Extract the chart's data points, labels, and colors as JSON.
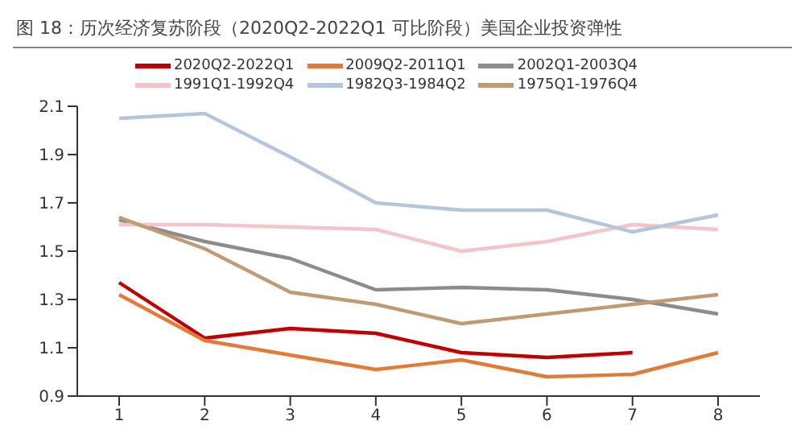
{
  "chart_data": {
    "type": "line",
    "title": "图 18：历次经济复苏阶段（2020Q2-2022Q1 可比阶段）美国企业投资弹性",
    "categories": [
      "1",
      "2",
      "3",
      "4",
      "5",
      "6",
      "7",
      "8"
    ],
    "series": [
      {
        "name": "2020Q2-2022Q1",
        "color": "#c00000",
        "values": [
          1.37,
          1.14,
          1.18,
          1.16,
          1.08,
          1.06,
          1.08,
          null
        ]
      },
      {
        "name": "2009Q2-2011Q1",
        "color": "#e07b39",
        "values": [
          1.32,
          1.13,
          1.07,
          1.01,
          1.05,
          0.98,
          0.99,
          1.08
        ]
      },
      {
        "name": "2002Q1-2003Q4",
        "color": "#8c8c8c",
        "values": [
          1.63,
          1.54,
          1.47,
          1.34,
          1.35,
          1.34,
          1.3,
          1.24
        ]
      },
      {
        "name": "1991Q1-1992Q4",
        "color": "#f4c4c8",
        "values": [
          1.61,
          1.61,
          1.6,
          1.59,
          1.5,
          1.54,
          1.61,
          1.59
        ]
      },
      {
        "name": "1982Q3-1984Q2",
        "color": "#b4c6dc",
        "values": [
          2.05,
          2.07,
          1.89,
          1.7,
          1.67,
          1.67,
          1.58,
          1.65
        ]
      },
      {
        "name": "1975Q1-1976Q4",
        "color": "#c09a74",
        "values": [
          1.64,
          1.51,
          1.33,
          1.28,
          1.2,
          1.24,
          1.28,
          1.32
        ]
      }
    ],
    "ylim": [
      0.9,
      2.1
    ],
    "yticks": [
      0.9,
      1.1,
      1.3,
      1.5,
      1.7,
      1.9,
      2.1
    ],
    "grid": false,
    "legend": "top",
    "marker": "none",
    "line_style": "solid"
  }
}
